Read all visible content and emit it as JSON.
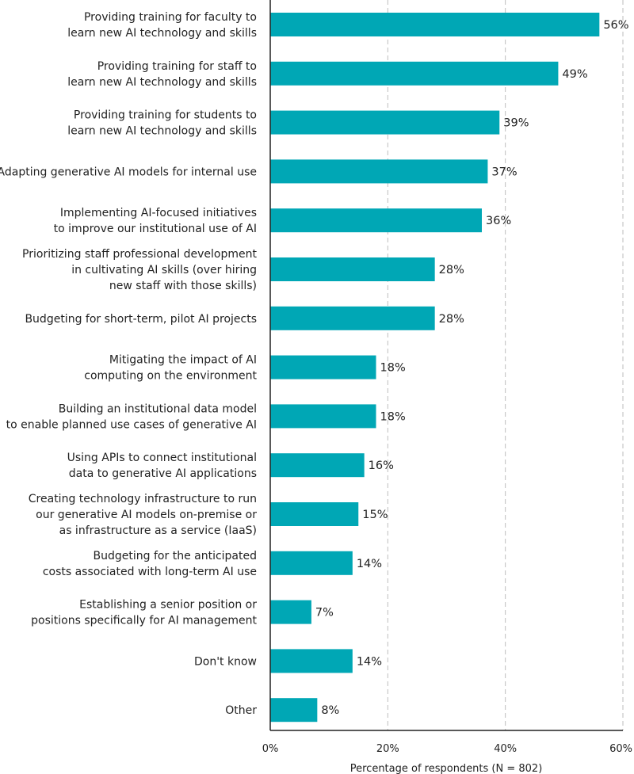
{
  "chart_data": {
    "type": "bar",
    "orientation": "horizontal",
    "categories": [
      [
        "Providing training for faculty to",
        "learn new AI technology and skills"
      ],
      [
        "Providing training for staff to",
        "learn new AI technology and skills"
      ],
      [
        "Providing training for students to",
        "learn new AI technology and skills"
      ],
      [
        "Adapting generative AI models for internal use"
      ],
      [
        "Implementing AI-focused initiatives",
        "to improve our institutional use of AI"
      ],
      [
        "Prioritizing staff professional development",
        "in cultivating AI skills (over hiring",
        "new staff with those skills)"
      ],
      [
        "Budgeting for short-term, pilot AI projects"
      ],
      [
        "Mitigating the impact of AI",
        "computing on the environment"
      ],
      [
        "Building an institutional data model",
        "to enable planned use cases of generative AI"
      ],
      [
        "Using APIs to connect institutional",
        "data to generative AI applications"
      ],
      [
        "Creating technology infrastructure to run",
        "our generative AI models on-premise or",
        "as infrastructure as a service (IaaS)"
      ],
      [
        "Budgeting for the anticipated",
        "costs associated with long-term AI use"
      ],
      [
        "Establishing a senior position or",
        "positions specifically for AI management"
      ],
      [
        "Don't know"
      ],
      [
        "Other"
      ]
    ],
    "values": [
      56,
      49,
      39,
      37,
      36,
      28,
      28,
      18,
      18,
      16,
      15,
      14,
      7,
      14,
      8
    ],
    "value_labels": [
      "56%",
      "49%",
      "39%",
      "37%",
      "36%",
      "28%",
      "28%",
      "18%",
      "18%",
      "16%",
      "15%",
      "14%",
      "7%",
      "14%",
      "8%"
    ],
    "xlim": [
      0,
      60
    ],
    "xticks": [
      0,
      20,
      40,
      60
    ],
    "xtick_labels": [
      "0%",
      "20%",
      "40%",
      "60%"
    ],
    "xlabel": "Percentage of respondents (N = 802)",
    "title": "",
    "grid": "vertical-dashed",
    "bar_color": "#00A7B5",
    "grid_color": "#bdbdbd",
    "axis_color": "#222222",
    "text_color": "#222222"
  }
}
